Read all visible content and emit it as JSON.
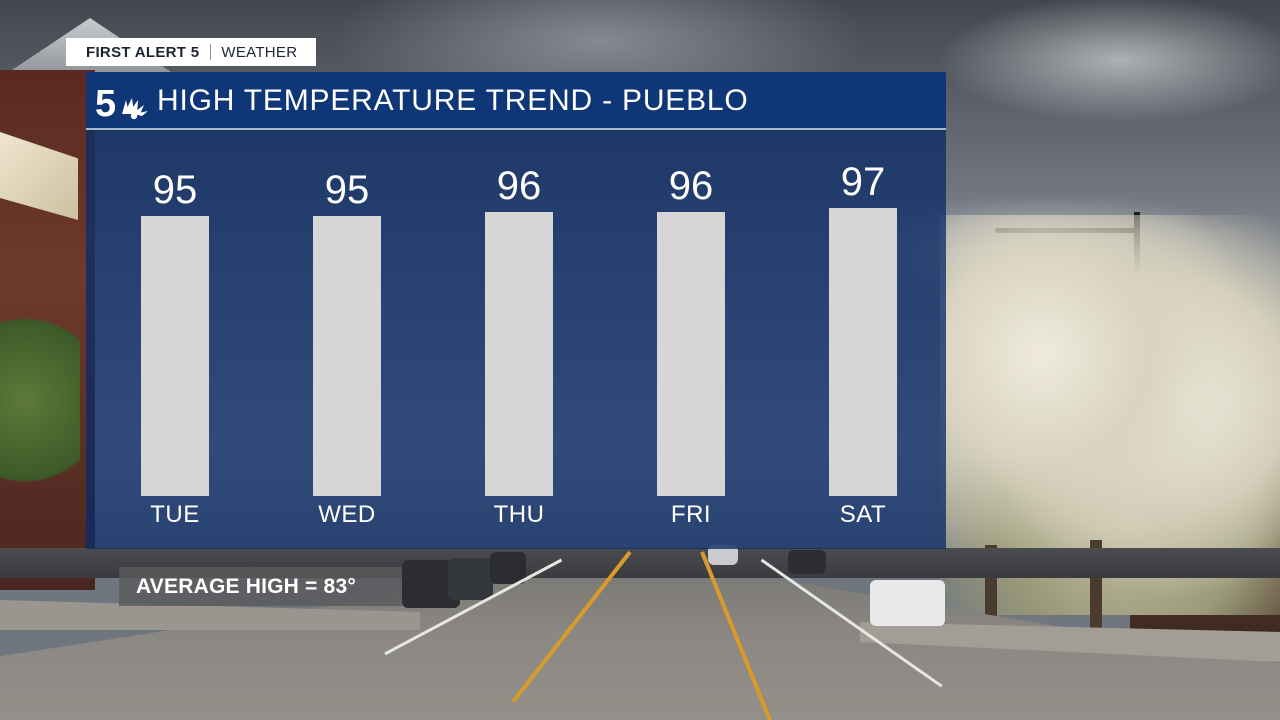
{
  "brand": {
    "name": "FIRST ALERT 5",
    "section": "WEATHER"
  },
  "logo_icon": "nbc-5-peacock-icon",
  "colors": {
    "panel": "#0b2c66",
    "header": "#0f3676",
    "bar": "#d6d6d6",
    "text": "#ffffff"
  },
  "chart_data": {
    "type": "bar",
    "title": "HIGH TEMPERATURE TREND - PUEBLO",
    "categories": [
      "TUE",
      "WED",
      "THU",
      "FRI",
      "SAT"
    ],
    "values": [
      95,
      95,
      96,
      96,
      97
    ],
    "data_labels": [
      "95",
      "95",
      "96",
      "96",
      "97"
    ],
    "xlabel": "",
    "ylabel": "",
    "grid": false,
    "legend": "none"
  },
  "average_high": {
    "label": "AVERAGE HIGH = 83°"
  }
}
